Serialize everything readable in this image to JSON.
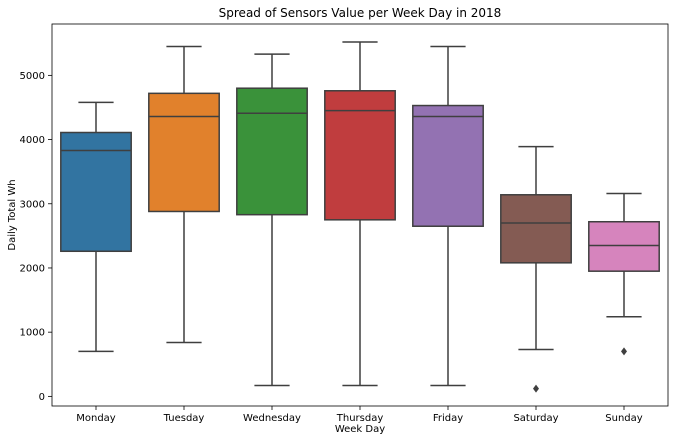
{
  "chart_data": {
    "type": "boxplot",
    "title": "Spread of Sensors Value per Week Day in 2018",
    "xlabel": "Week Day",
    "ylabel": "Daily Total Wh",
    "ylim": [
      -150,
      5800
    ],
    "yticks": [
      0,
      1000,
      2000,
      3000,
      4000,
      5000
    ],
    "grid": false,
    "categories": [
      "Monday",
      "Tuesday",
      "Wednesday",
      "Thursday",
      "Friday",
      "Saturday",
      "Sunday"
    ],
    "boxes": [
      {
        "category": "Monday",
        "whisker_low": 700,
        "q1": 2260,
        "median": 3830,
        "q3": 4110,
        "whisker_high": 4580,
        "outliers": [],
        "color": "#3274a1"
      },
      {
        "category": "Tuesday",
        "whisker_low": 840,
        "q1": 2880,
        "median": 4360,
        "q3": 4720,
        "whisker_high": 5450,
        "outliers": [],
        "color": "#e1812c"
      },
      {
        "category": "Wednesday",
        "whisker_low": 170,
        "q1": 2830,
        "median": 4410,
        "q3": 4800,
        "whisker_high": 5330,
        "outliers": [],
        "color": "#3a923a"
      },
      {
        "category": "Thursday",
        "whisker_low": 170,
        "q1": 2750,
        "median": 4450,
        "q3": 4760,
        "whisker_high": 5520,
        "outliers": [],
        "color": "#c03d3e"
      },
      {
        "category": "Friday",
        "whisker_low": 170,
        "q1": 2650,
        "median": 4360,
        "q3": 4530,
        "whisker_high": 5450,
        "outliers": [],
        "color": "#9372b2"
      },
      {
        "category": "Saturday",
        "whisker_low": 730,
        "q1": 2080,
        "median": 2700,
        "q3": 3140,
        "whisker_high": 3890,
        "outliers": [
          120
        ],
        "color": "#845b53"
      },
      {
        "category": "Sunday",
        "whisker_low": 1240,
        "q1": 1950,
        "median": 2350,
        "q3": 2720,
        "whisker_high": 3160,
        "outliers": [
          700
        ],
        "color": "#d684bd"
      }
    ]
  }
}
